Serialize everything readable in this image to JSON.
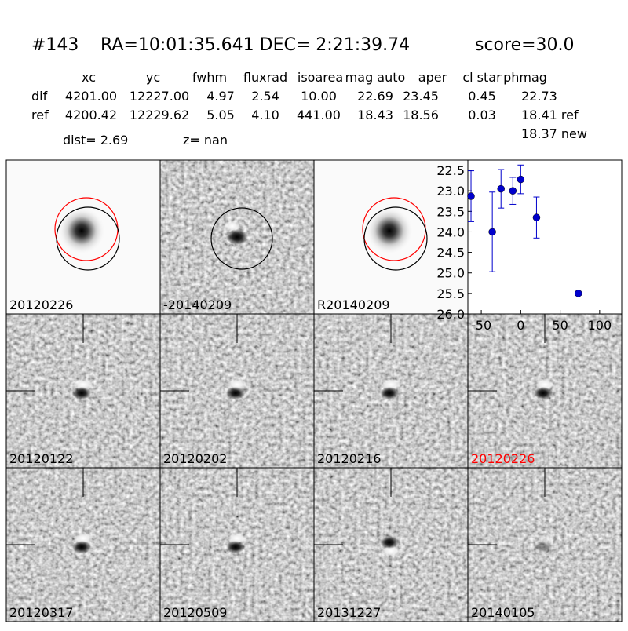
{
  "header": {
    "id": "#143",
    "coords": "RA=10:01:35.641 DEC= 2:21:39.74",
    "score": "score=30.0"
  },
  "table": {
    "columns": [
      "xc",
      "yc",
      "fwhm",
      "fluxrad",
      "isoarea",
      "mag auto",
      "aper",
      "cl star",
      "phmag"
    ],
    "rows": [
      [
        "dif",
        "4201.00",
        "12227.00",
        "4.97",
        "2.54",
        "10.00",
        "22.69",
        "23.45",
        "0.45",
        "22.73"
      ],
      [
        "ref",
        "4200.42",
        "12229.62",
        "5.05",
        "4.10",
        "441.00",
        "18.43",
        "18.56",
        "0.03",
        "18.41 ref"
      ]
    ],
    "note": "18.37 new"
  },
  "dist": "dist=  2.69",
  "z": "z=   nan",
  "panels": [
    "20120226",
    "-20140209",
    "R20140209",
    "20120122",
    "20120202",
    "20120216",
    "20120226",
    "20120317",
    "20120509",
    "20131227",
    "20140105"
  ],
  "chart_data": {
    "type": "scatter",
    "color": "#0000cc",
    "x": [
      -63,
      -36,
      -25,
      -10,
      0,
      20,
      73
    ],
    "values": [
      23.13,
      24.0,
      22.95,
      23.0,
      22.72,
      23.65,
      25.5
    ],
    "errors": [
      0.62,
      0.97,
      0.47,
      0.33,
      0.35,
      0.5,
      0.05
    ],
    "xlim": [
      -67,
      128
    ],
    "ylim": [
      26.0,
      22.25
    ],
    "xticks": [
      -50,
      0,
      50,
      100
    ],
    "yticks": [
      22.5,
      {
        "value": 23,
        "label": "23.0"
      },
      23.5,
      {
        "value": 24,
        "label": "24.0"
      },
      24.5,
      {
        "value": 25,
        "label": "25.0"
      },
      25.5,
      {
        "value": 26,
        "label": "26.0"
      }
    ]
  }
}
